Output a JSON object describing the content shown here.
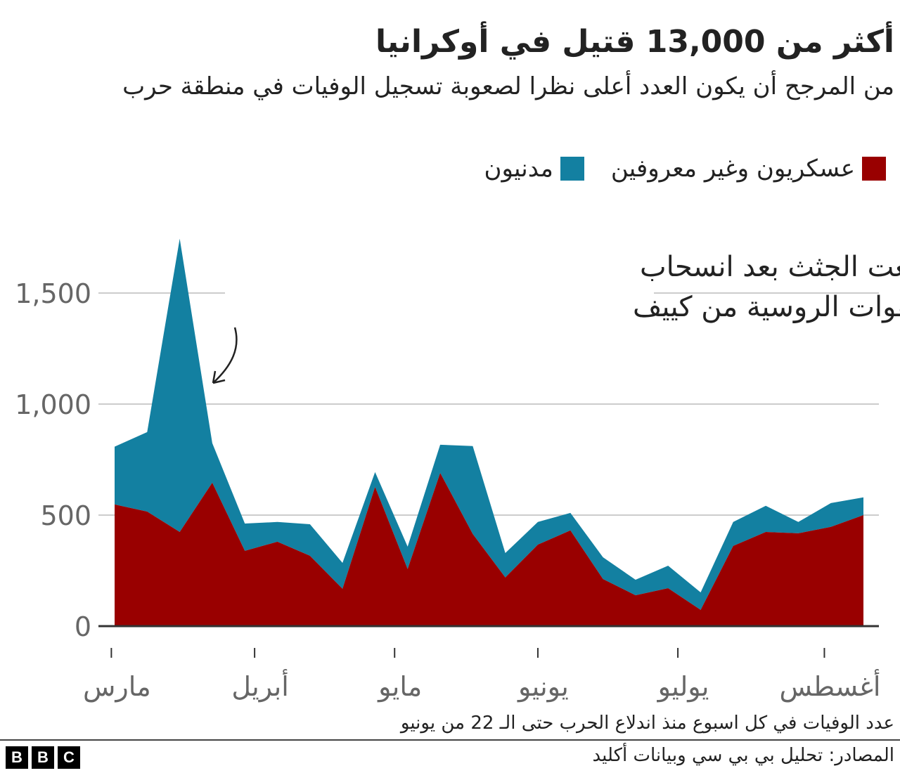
{
  "title": "أكثر من 13,000 قتيل في أوكرانيا",
  "subtitle": "من المرجح أن يكون العدد أعلى نظرا لصعوبة تسجيل الوفيات في منطقة حرب",
  "note": "عدد الوفيات في كل اسبوع منذ اندلاع الحرب حتى الـ 22 من يونيو",
  "source": "المصادر: تحليل بي بي سي وبيانات أكليد",
  "logo": "BBC",
  "colors": {
    "military": "#990000",
    "civilian": "#1380A1",
    "grid": "#cccccc"
  },
  "chart_data": {
    "type": "area",
    "stacked": true,
    "title": "أكثر من 13,000 قتيل في أوكرانيا",
    "legend_placement": "top-right",
    "grid": true,
    "ylim": [
      0,
      1750
    ],
    "y_ticks": [
      "0",
      "500",
      "1,000",
      "1,500"
    ],
    "y_tick_values": [
      0,
      500,
      1000,
      1500
    ],
    "x_tick_labels": [
      "مارس",
      "أبريل",
      "مايو",
      "يونيو",
      "يوليو",
      "أغسطس"
    ],
    "x_tick_week_index": [
      -0.1,
      4.3,
      8.6,
      13.0,
      17.3,
      21.8
    ],
    "series": [
      {
        "name": "عسكريون وغير معروفين",
        "values": [
          548,
          516,
          424,
          646,
          339,
          380,
          317,
          168,
          627,
          257,
          690,
          415,
          219,
          367,
          431,
          212,
          139,
          171,
          73,
          361,
          424,
          418,
          447,
          500
        ]
      },
      {
        "name": "مدنيون",
        "values": [
          260,
          358,
          1321,
          178,
          123,
          89,
          142,
          117,
          67,
          101,
          127,
          396,
          110,
          102,
          79,
          98,
          70,
          101,
          79,
          108,
          118,
          51,
          107,
          80
        ]
      }
    ],
    "annotation": {
      "text_lines": [
        "استرجعت الجثث بعد انسحاب",
        "القوات الروسية من كييف"
      ],
      "week_index": 3
    }
  }
}
